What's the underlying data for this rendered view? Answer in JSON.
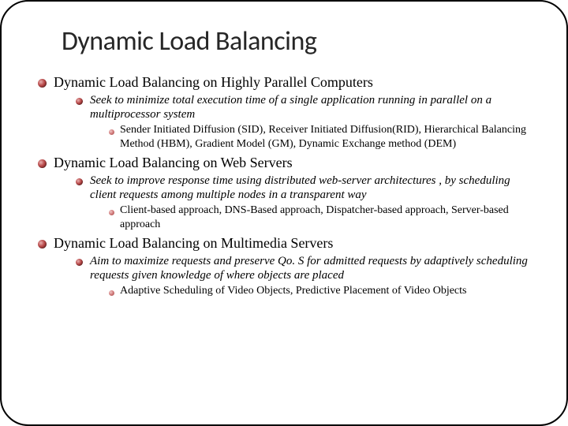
{
  "title": "Dynamic Load Balancing",
  "colors": {
    "background": "#ffffff",
    "border": "#000000",
    "text": "#000000",
    "title_text": "#262626",
    "bullet_dark": "#6a2020",
    "bullet_light": "#d07878"
  },
  "typography": {
    "title_font": "Calibri, Arial, sans-serif",
    "title_size_pt": 26,
    "body_font": "Georgia, Times New Roman, serif",
    "l1_size_pt": 13.5,
    "l2_size_pt": 11.5,
    "l2_style": "italic",
    "l3_size_pt": 10.5
  },
  "items": [
    {
      "text": "Dynamic Load Balancing on Highly Parallel Computers",
      "sub": [
        {
          "text": "Seek to minimize total execution time of a single application running in parallel on a multiprocessor system",
          "sub": [
            {
              "text": "Sender Initiated Diffusion (SID), Receiver Initiated Diffusion(RID), Hierarchical Balancing Method (HBM), Gradient Model (GM), Dynamic Exchange method (DEM)"
            }
          ]
        }
      ]
    },
    {
      "text": "Dynamic Load Balancing on Web Servers",
      "sub": [
        {
          "text": "Seek to improve response time using distributed web-server architectures , by scheduling client requests among multiple nodes in a transparent way",
          "sub": [
            {
              "text": "Client-based approach, DNS-Based approach, Dispatcher-based approach, Server-based approach"
            }
          ]
        }
      ]
    },
    {
      "text": "Dynamic Load Balancing on Multimedia Servers",
      "sub": [
        {
          "text": "Aim to maximize requests and preserve Qo. S for admitted requests by adaptively scheduling requests given knowledge  of where objects are placed",
          "sub": [
            {
              "text": "Adaptive Scheduling of Video Objects, Predictive Placement of Video Objects"
            }
          ]
        }
      ]
    }
  ]
}
